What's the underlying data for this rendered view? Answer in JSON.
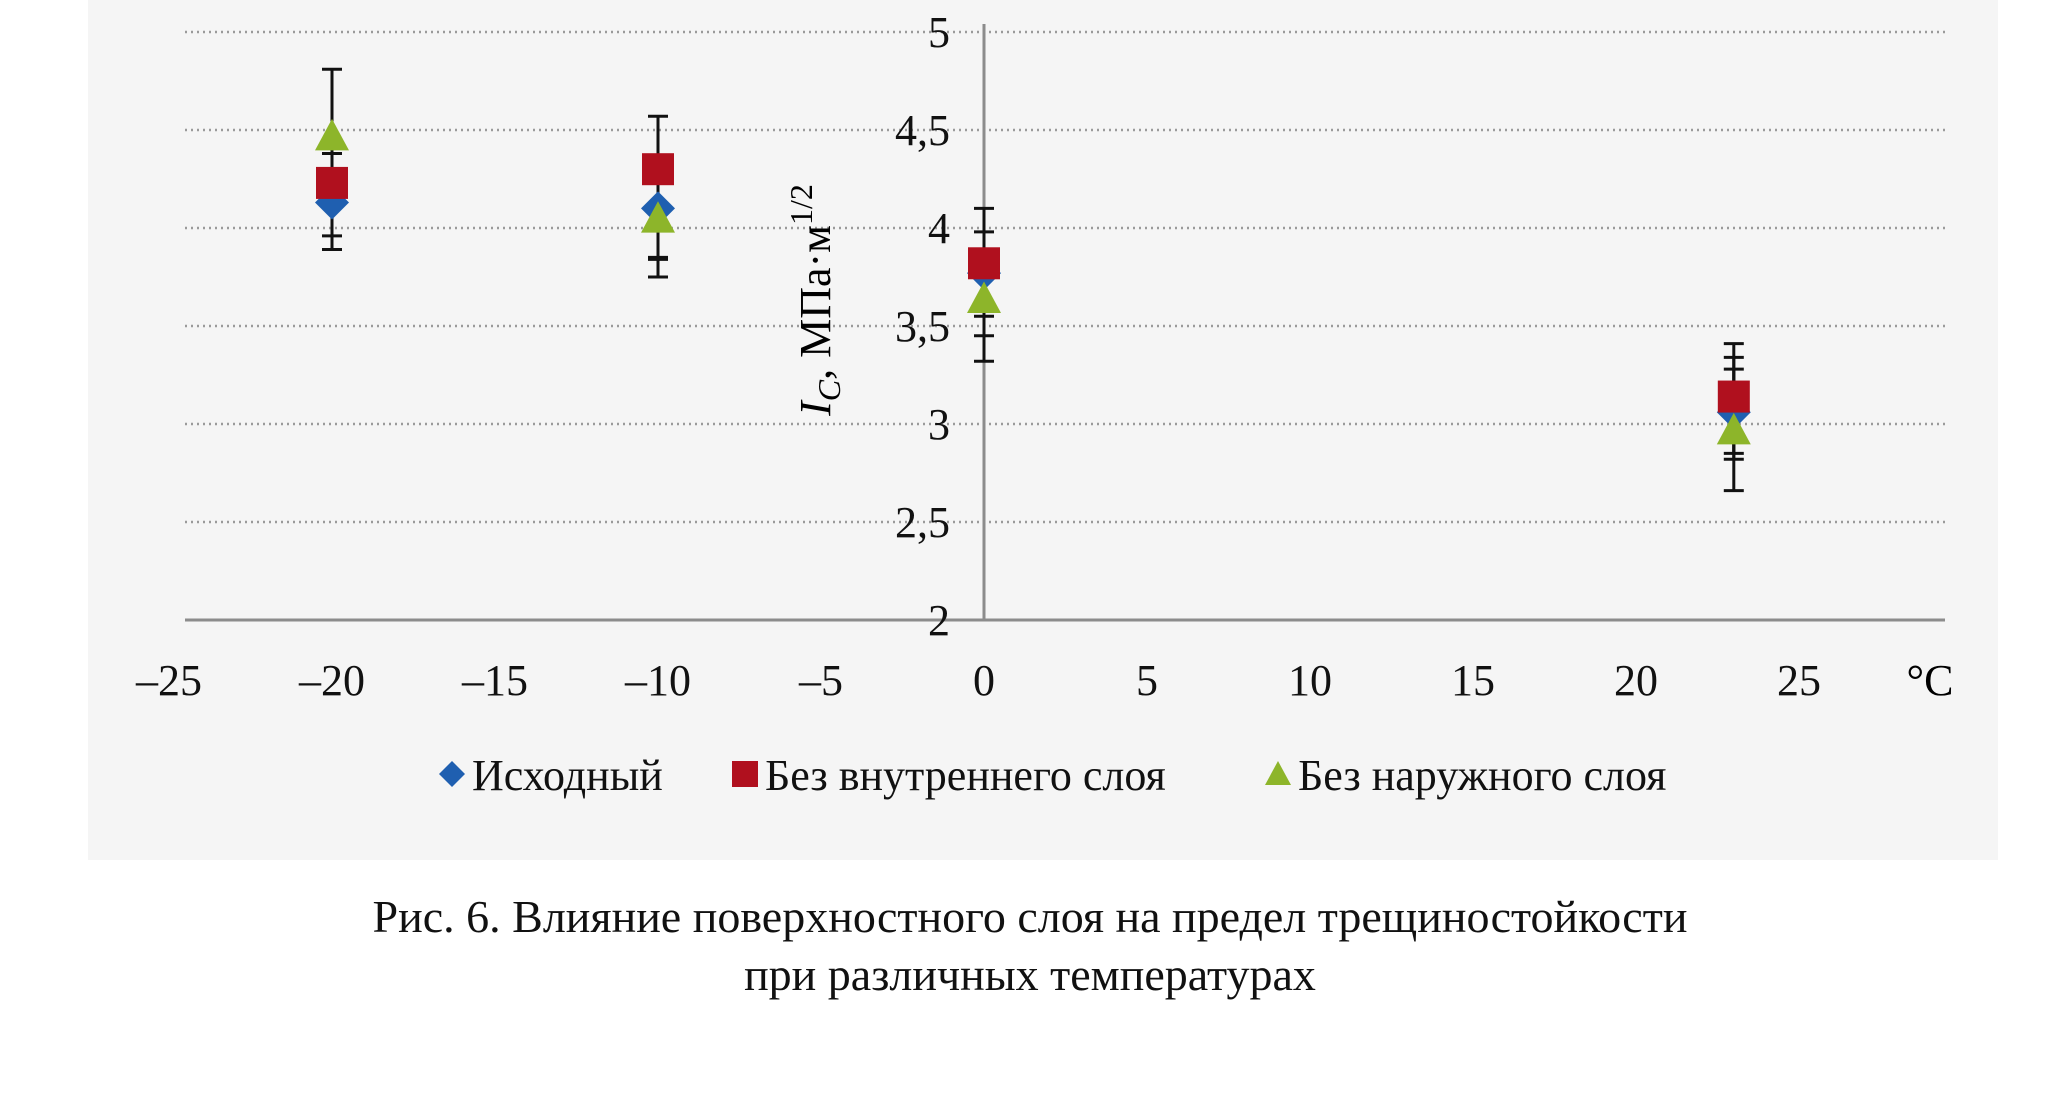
{
  "chart_data": {
    "type": "scatter",
    "title": "",
    "xlabel": "°C",
    "ylabel_main": "I",
    "ylabel_sub": "C",
    "ylabel_rest": ", МПа·м",
    "ylabel_sup": "1/2",
    "xlim": [
      -25,
      28
    ],
    "ylim": [
      2,
      5
    ],
    "x_ticks": [
      "–25",
      "–20",
      "–15",
      "–10",
      "–5",
      "0",
      "5",
      "10",
      "15",
      "20",
      "25"
    ],
    "x_tick_values": [
      -25,
      -20,
      -15,
      -10,
      -5,
      0,
      5,
      10,
      15,
      20,
      25
    ],
    "y_ticks": [
      "2",
      "2,5",
      "3",
      "3,5",
      "4",
      "4,5",
      "5"
    ],
    "y_tick_values": [
      2,
      2.5,
      3,
      3.5,
      4,
      4.5,
      5
    ],
    "grid": "horizontal dotted",
    "legend_position": "bottom",
    "series": [
      {
        "name": "Исходный",
        "marker": "diamond",
        "color": "#1f5fb0",
        "x": [
          -20,
          -10,
          0,
          23
        ],
        "y": [
          4.13,
          4.1,
          3.77,
          3.06
        ],
        "err_low": [
          3.89,
          3.75,
          3.32,
          2.66
        ],
        "err_high": [
          4.38,
          4.33,
          4.1,
          3.34
        ]
      },
      {
        "name": "Без внутреннего слоя",
        "marker": "square",
        "color": "#b0101e",
        "x": [
          -20,
          -10,
          0,
          23
        ],
        "y": [
          4.23,
          4.3,
          3.82,
          3.14
        ],
        "err_low": [
          3.96,
          3.85,
          3.55,
          2.85
        ],
        "err_high": [
          4.38,
          4.57,
          3.98,
          3.41
        ]
      },
      {
        "name": "Без наружного слоя",
        "marker": "triangle",
        "color": "#8db52a",
        "x": [
          -20,
          -10,
          0,
          23
        ],
        "y": [
          4.47,
          4.05,
          3.64,
          2.97
        ],
        "err_low": [
          4.25,
          3.84,
          3.45,
          2.82
        ],
        "err_high": [
          4.81,
          4.35,
          3.88,
          3.28
        ]
      }
    ]
  },
  "caption": {
    "line1": "Рис. 6. Влияние поверхностного слоя на предел трещиностойкости",
    "line2": "при различных температурах"
  }
}
